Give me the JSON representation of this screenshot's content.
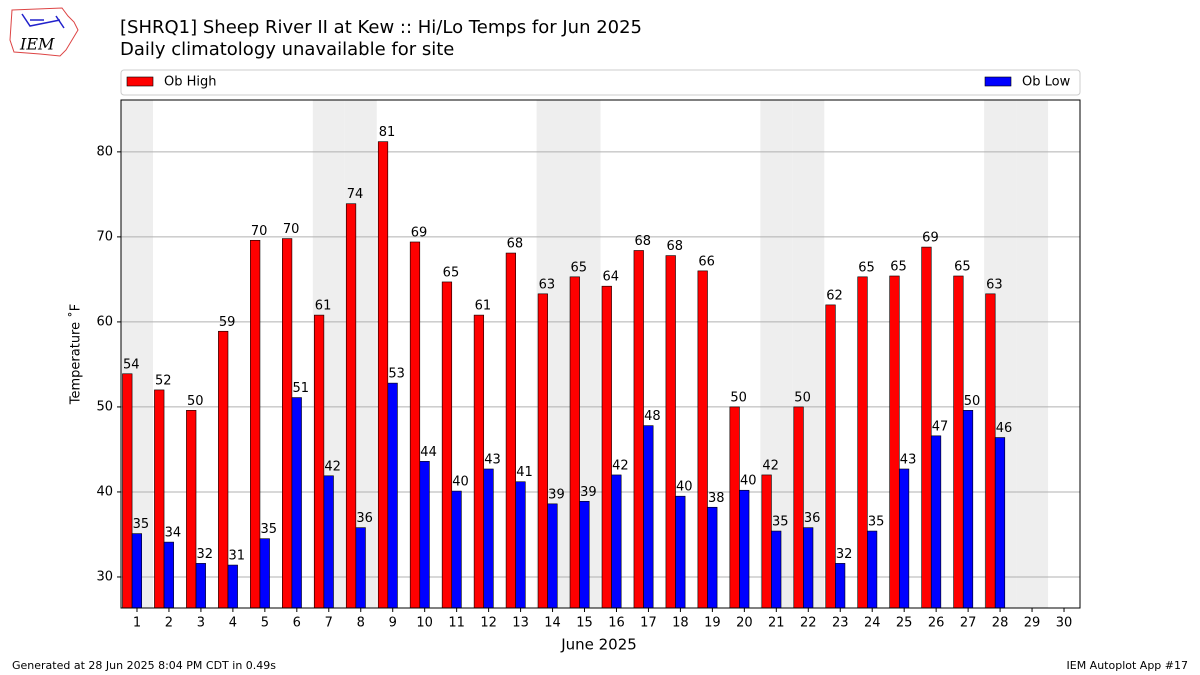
{
  "chart_data": {
    "type": "bar",
    "title": "[SHRQ1] Sheep River II at Kew :: Hi/Lo Temps for Jun 2025",
    "subtitle": "Daily climatology unavailable for site",
    "logo_text": "IEM",
    "xlabel": "June 2025",
    "ylabel": "Temperature ˚F",
    "categories": [
      "1",
      "2",
      "3",
      "4",
      "5",
      "6",
      "7",
      "8",
      "9",
      "10",
      "11",
      "12",
      "13",
      "14",
      "15",
      "16",
      "17",
      "18",
      "19",
      "20",
      "21",
      "22",
      "23",
      "24",
      "25",
      "26",
      "27",
      "28",
      "29",
      "30"
    ],
    "shaded_categories": [
      "1",
      "7",
      "8",
      "14",
      "15",
      "21",
      "22",
      "28",
      "29"
    ],
    "series": [
      {
        "name": "Ob High",
        "color": "#ff0000",
        "values": [
          53.9,
          52.0,
          49.6,
          58.9,
          69.6,
          69.8,
          60.8,
          73.9,
          81.2,
          69.4,
          64.7,
          60.8,
          68.1,
          63.3,
          65.3,
          64.2,
          68.4,
          67.8,
          66.0,
          50.0,
          42.0,
          50.0,
          62.0,
          65.3,
          65.4,
          68.8,
          65.4,
          63.3,
          null,
          null
        ],
        "value_labels": [
          "54",
          "52",
          "50",
          "59",
          "70",
          "70",
          "61",
          "74",
          "81",
          "69",
          "65",
          "61",
          "68",
          "63",
          "65",
          "64",
          "68",
          "68",
          "66",
          "50",
          "42",
          "50",
          "62",
          "65",
          "65",
          "69",
          "65",
          "63",
          null,
          null
        ]
      },
      {
        "name": "Ob Low",
        "color": "#0000ff",
        "values": [
          35.1,
          34.1,
          31.6,
          31.4,
          34.5,
          51.1,
          41.9,
          35.8,
          52.8,
          43.6,
          40.1,
          42.7,
          41.2,
          38.6,
          38.9,
          42.0,
          47.8,
          39.5,
          38.2,
          40.2,
          35.4,
          35.8,
          31.6,
          35.4,
          42.7,
          46.6,
          49.6,
          46.4,
          null,
          null
        ],
        "value_labels": [
          "35",
          "34",
          "32",
          "31",
          "35",
          "51",
          "42",
          "36",
          "53",
          "44",
          "40",
          "43",
          "41",
          "39",
          "39",
          "42",
          "48",
          "40",
          "38",
          "40",
          "35",
          "36",
          "32",
          "35",
          "43",
          "47",
          "50",
          "46",
          null,
          null
        ]
      }
    ],
    "ylim": [
      26.35,
      86.1
    ],
    "yticks": [
      30,
      40,
      50,
      60,
      70,
      80
    ],
    "grid": true,
    "footer_left": "Generated at 28 Jun 2025 8:04 PM CDT in 0.49s",
    "footer_right": "IEM Autoplot App #17"
  }
}
